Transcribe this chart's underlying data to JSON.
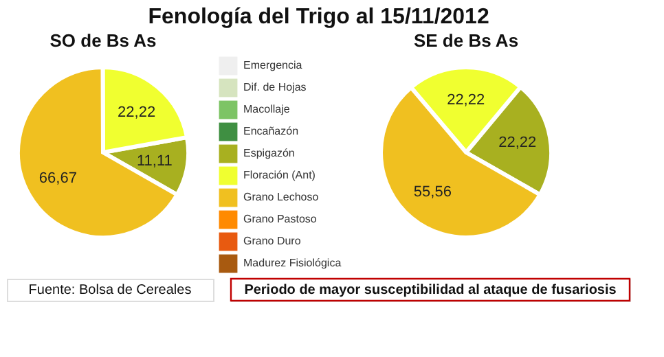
{
  "chart_data": [
    {
      "type": "pie",
      "title": "Fenología del Trigo al 15/11/2012",
      "subtitle": "SO de Bs As",
      "categories": [
        "Emergencia",
        "Dif. de Hojas",
        "Macollaje",
        "Encañazón",
        "Espigazón",
        "Floración (Ant)",
        "Grano Lechoso",
        "Grano Pastoso",
        "Grano Duro",
        "Madurez Fisiológica"
      ],
      "values": [
        0,
        0,
        0,
        0,
        11.11,
        22.22,
        66.67,
        0,
        0,
        0
      ],
      "value_labels": [
        null,
        null,
        null,
        null,
        "11,11",
        "22,22",
        "66,67",
        null,
        null,
        null
      ],
      "colors": [
        "#efefef",
        "#d6e4bf",
        "#7dc465",
        "#3f8f42",
        "#a8b020",
        "#f0ff30",
        "#f0c020",
        "#ff8a00",
        "#e85a10",
        "#a85a10"
      ],
      "legend": "right",
      "annotations": [
        "Fuente: Bolsa de Cereales"
      ]
    },
    {
      "type": "pie",
      "subtitle": "SE de Bs As",
      "categories": [
        null,
        null,
        null,
        null,
        null,
        null,
        null,
        null,
        null,
        null
      ],
      "values": [
        0,
        0,
        0,
        0,
        22.22,
        22.22,
        55.56,
        0,
        0,
        0
      ],
      "value_labels": [
        null,
        null,
        null,
        null,
        "22,22",
        "22,22",
        "55,56",
        null,
        null,
        null
      ],
      "colors": [
        "#efefef",
        "#d6e4bf",
        "#7dc465",
        "#3f8f42",
        "#a8b020",
        "#f0ff30",
        "#f0c020",
        "#ff8a00",
        "#e85a10",
        "#a85a10"
      ],
      "annotations": [
        "Periodo de mayor susceptibilidad al ataque de fusariosis"
      ]
    }
  ]
}
